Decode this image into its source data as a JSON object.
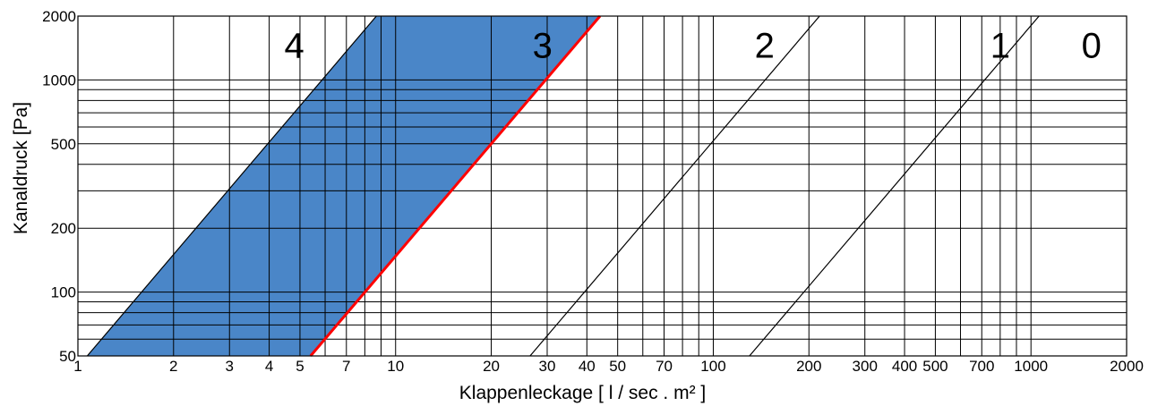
{
  "chart_data": {
    "type": "line",
    "xlabel": "Klappenleckage   [ l / sec . m² ]",
    "ylabel": "Kanaldruck   [Pa]",
    "x_scale": "log",
    "y_scale": "log",
    "xlim": [
      1,
      2000
    ],
    "ylim": [
      50,
      2000
    ],
    "grid": true,
    "x_ticks": [
      1,
      2,
      3,
      4,
      5,
      7,
      10,
      20,
      30,
      40,
      50,
      70,
      100,
      200,
      300,
      400,
      500,
      700,
      1000,
      2000
    ],
    "x_tick_labels": [
      "1",
      "2",
      "3",
      "4",
      "5",
      "7",
      "10",
      "20",
      "30",
      "40",
      "50",
      "70",
      "100",
      "200",
      "300",
      "400",
      "500",
      "700",
      "1000",
      "2000"
    ],
    "x_gridlines": [
      1,
      2,
      3,
      4,
      5,
      6,
      7,
      8,
      9,
      10,
      20,
      30,
      40,
      50,
      60,
      70,
      80,
      90,
      100,
      200,
      300,
      400,
      500,
      600,
      700,
      800,
      900,
      1000,
      2000
    ],
    "y_ticks": [
      50,
      100,
      200,
      500,
      1000,
      2000
    ],
    "y_tick_labels": [
      "50",
      "100",
      "200",
      "500",
      "1000",
      "2000"
    ],
    "y_gridlines": [
      50,
      60,
      70,
      80,
      90,
      100,
      200,
      300,
      400,
      500,
      600,
      700,
      800,
      900,
      1000,
      2000
    ],
    "series": [
      {
        "name": "4",
        "color": "#000000",
        "points": [
          [
            1.07,
            50
          ],
          [
            8.7,
            2000
          ]
        ]
      },
      {
        "name": "3",
        "color": "#ff0000",
        "points": [
          [
            5.4,
            50
          ],
          [
            44,
            2000
          ]
        ]
      },
      {
        "name": "2",
        "color": "#000000",
        "points": [
          [
            26.5,
            50
          ],
          [
            216,
            2000
          ]
        ]
      },
      {
        "name": "1",
        "color": "#000000",
        "points": [
          [
            130,
            50
          ],
          [
            1060,
            2000
          ]
        ]
      }
    ],
    "shaded_region": {
      "between": [
        "4",
        "3"
      ],
      "color": "#4a86c8"
    },
    "class_labels": [
      {
        "text": "4",
        "x": 4.8,
        "y": 1500
      },
      {
        "text": "3",
        "x": 29,
        "y": 1500
      },
      {
        "text": "2",
        "x": 145,
        "y": 1500
      },
      {
        "text": "1",
        "x": 800,
        "y": 1500
      },
      {
        "text": "0",
        "x": 1550,
        "y": 1500
      }
    ]
  }
}
